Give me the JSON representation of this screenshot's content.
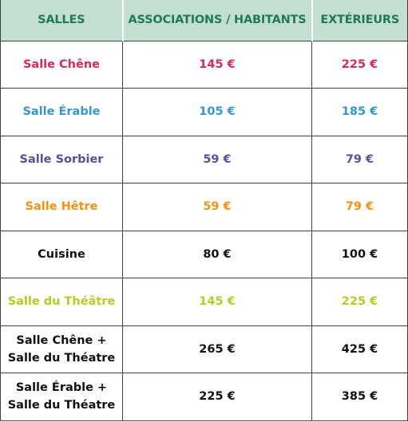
{
  "table": {
    "headers": [
      "SALLES",
      "ASSOCIATIONS / HABITANTS",
      "EXTÉRIEURS"
    ],
    "rows": [
      {
        "room": "Salle Chêne",
        "associations": "145 €",
        "exterieurs": "225 €",
        "color": "#d42b5b"
      },
      {
        "room": "Salle Érable",
        "associations": "105 €",
        "exterieurs": "185 €",
        "color": "#3597cf"
      },
      {
        "room": "Salle Sorbier",
        "associations": "59 €",
        "exterieurs": "79 €",
        "color": "#5a4f9f"
      },
      {
        "room": "Salle Hêtre",
        "associations": "59 €",
        "exterieurs": "79 €",
        "color": "#f39312"
      },
      {
        "room": "Cuisine",
        "associations": "80 €",
        "exterieurs": "100 €",
        "color": "#111111"
      },
      {
        "room": "Salle du Théâtre",
        "associations": "145 €",
        "exterieurs": "225 €",
        "color": "#b6cc1e"
      },
      {
        "room_line1": "Salle Chêne +",
        "room_line2": "Salle du Théatre",
        "associations": "265 €",
        "exterieurs": "425 €",
        "color": "#111111"
      },
      {
        "room_line1": "Salle Érable +",
        "room_line2": "Salle du Théatre",
        "associations": "225 €",
        "exterieurs": "385 €",
        "color": "#111111"
      }
    ]
  },
  "colors": {
    "header_bg": "#c3dfd0",
    "header_text": "#1f7a5c",
    "border": "#3f3f3f"
  }
}
